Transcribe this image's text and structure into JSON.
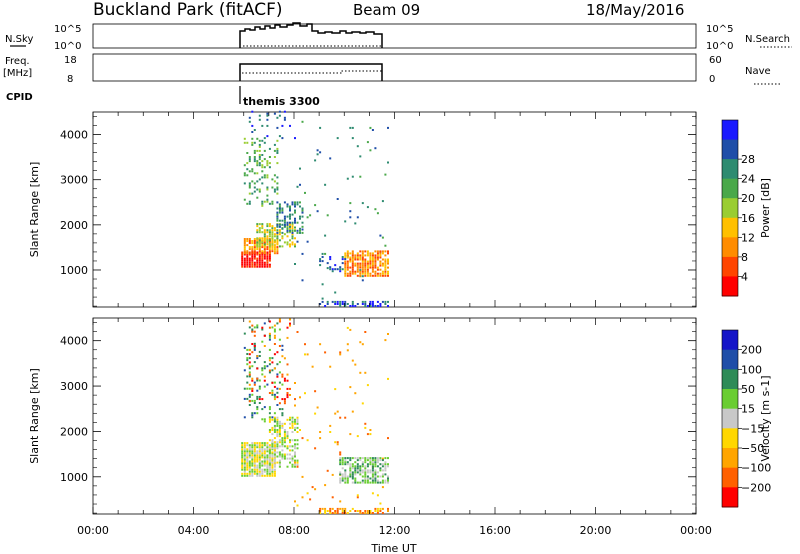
{
  "header": {
    "title": "Buckland Park (fitACF)",
    "beam": "Beam 09",
    "date": "18/May/2016"
  },
  "strip_labels": {
    "nsky": "N.Sky",
    "nsky_hi": "10^5",
    "nsky_lo": "10^0",
    "nsearch": "N.Search",
    "freq": "Freq.",
    "freq_unit": "[MHz]",
    "freq_hi": "18",
    "freq_lo": "8",
    "nave": "Nave",
    "nave_hi": "60",
    "nave_lo": "0",
    "cpid": "CPID",
    "program": "themis 3300"
  },
  "chart_data": [
    {
      "type": "heatmap",
      "name": "power",
      "ylabel": "Slant Range [km]",
      "xlabel": "Time UT",
      "xlim": [
        "00:00",
        "24:00"
      ],
      "ylim": [
        180,
        4500
      ],
      "xticks": [
        "00:00",
        "04:00",
        "08:00",
        "12:00",
        "16:00",
        "20:00",
        "00:00"
      ],
      "yticks": [
        1000,
        2000,
        3000,
        4000
      ],
      "colorbar": {
        "label": "Power [dB]",
        "ticks": [
          "4",
          "8",
          "12",
          "16",
          "20",
          "24",
          "28"
        ],
        "colors": [
          "#1a1aff",
          "#1f4ea8",
          "#2e8b70",
          "#4aa84a",
          "#9acd32",
          "#ffc000",
          "#ff8c00",
          "#ff4500",
          "#ff0000"
        ]
      },
      "regions": [
        {
          "t0": 5.9,
          "t1": 7.0,
          "r0": 1050,
          "r1": 1400,
          "level": 8,
          "density": 0.9
        },
        {
          "t0": 6.0,
          "t1": 7.3,
          "r0": 1350,
          "r1": 1700,
          "level": 6,
          "density": 0.8
        },
        {
          "t0": 6.5,
          "t1": 8.0,
          "r0": 1500,
          "r1": 2000,
          "level": 4,
          "density": 0.6
        },
        {
          "t0": 7.3,
          "t1": 8.3,
          "r0": 1800,
          "r1": 2500,
          "level": 2,
          "density": 0.4
        },
        {
          "t0": 6.0,
          "t1": 7.3,
          "r0": 2400,
          "r1": 3900,
          "level": 3,
          "density": 0.25
        },
        {
          "t0": 6.2,
          "t1": 8.0,
          "r0": 3900,
          "r1": 4500,
          "level": 1,
          "density": 0.08
        },
        {
          "t0": 8.0,
          "t1": 11.7,
          "r0": 300,
          "r1": 4300,
          "level": 2,
          "density": 0.02
        },
        {
          "t0": 10.0,
          "t1": 11.7,
          "r0": 850,
          "r1": 1400,
          "level": 6,
          "density": 0.7
        },
        {
          "t0": 9.0,
          "t1": 10.0,
          "r0": 950,
          "r1": 1300,
          "level": 1,
          "density": 0.3
        },
        {
          "t0": 9.0,
          "t1": 11.7,
          "r0": 180,
          "r1": 300,
          "level": 1,
          "density": 0.6
        }
      ]
    },
    {
      "type": "heatmap",
      "name": "velocity",
      "ylabel": "Slant Range [km]",
      "xlabel": "Time UT",
      "xlim": [
        "00:00",
        "24:00"
      ],
      "ylim": [
        180,
        4500
      ],
      "xticks": [
        "00:00",
        "04:00",
        "08:00",
        "12:00",
        "16:00",
        "20:00",
        "00:00"
      ],
      "yticks": [
        1000,
        2000,
        3000,
        4000
      ],
      "colorbar": {
        "label": "Velocity [m s-1]",
        "ticks": [
          "200",
          "100",
          "50",
          "15",
          "-15",
          "-50",
          "-100",
          "-200"
        ],
        "colors": [
          "#1414c8",
          "#1f4ea8",
          "#2e8b57",
          "#6acd32",
          "#c8c8c8",
          "#ffd700",
          "#ffa500",
          "#ff6000",
          "#ff0000"
        ]
      },
      "regions": [
        {
          "t0": 5.9,
          "t1": 7.2,
          "r0": 1000,
          "r1": 1750,
          "level": 4,
          "density": 0.9
        },
        {
          "t0": 7.0,
          "t1": 8.1,
          "r0": 1200,
          "r1": 2300,
          "level": 4,
          "density": 0.5
        },
        {
          "t0": 6.0,
          "t1": 7.5,
          "r0": 2200,
          "r1": 4400,
          "level": 2,
          "density": 0.2
        },
        {
          "t0": 6.2,
          "t1": 8.0,
          "r0": 2600,
          "r1": 4500,
          "level": 7,
          "density": 0.08
        },
        {
          "t0": 8.0,
          "t1": 11.7,
          "r0": 300,
          "r1": 4300,
          "level": 6,
          "density": 0.02
        },
        {
          "t0": 9.8,
          "t1": 11.7,
          "r0": 850,
          "r1": 1400,
          "level": 3,
          "density": 0.7
        },
        {
          "t0": 9.0,
          "t1": 11.7,
          "r0": 180,
          "r1": 300,
          "level": 6,
          "density": 0.6
        }
      ]
    }
  ]
}
